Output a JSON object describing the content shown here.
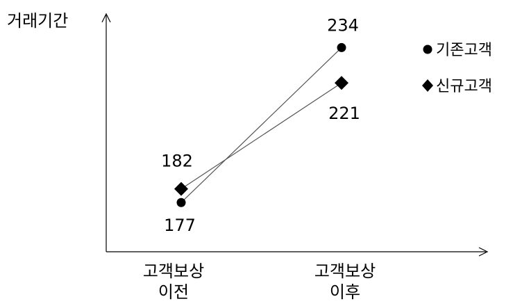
{
  "chart_data": {
    "type": "line",
    "ylabel": "거래기간",
    "categories": [
      {
        "line1": "고객보상",
        "line2": "이전"
      },
      {
        "line1": "고객보상",
        "line2": "이후"
      }
    ],
    "series": [
      {
        "name": "기존고객",
        "marker": "circle",
        "values": [
          177,
          234
        ]
      },
      {
        "name": "신규고객",
        "marker": "diamond",
        "values": [
          182,
          221
        ]
      }
    ],
    "ylim": [
      130,
      260
    ],
    "grid": false,
    "legend": "top-right",
    "colors": {
      "line": "#555555",
      "marker": "#000000"
    }
  }
}
